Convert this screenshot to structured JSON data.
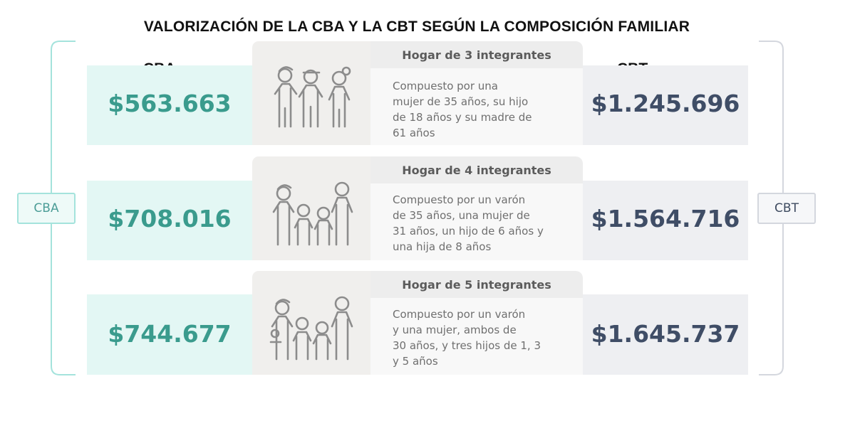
{
  "title": "VALORIZACIÓN DE LA CBA Y LA CBT SEGÚN LA COMPOSICIÓN FAMILIAR",
  "col_cba": "CBA",
  "col_cbt": "CBT",
  "side_cba": "CBA",
  "side_cbt": "CBT",
  "colors": {
    "cba_band": "#e3f7f4",
    "cba_text": "#3a9b8d",
    "cbt_band": "#eeeff2",
    "cbt_text": "#3f4d66",
    "icon": "#8c8c8c"
  },
  "rows": [
    {
      "cba": "$563.663",
      "header": "Hogar de 3 integrantes",
      "lines": [
        "Compuesto por una",
        "mujer de 35 años, su hijo",
        "de 18 años y su madre de",
        "61 años"
      ],
      "cbt": "$1.245.696",
      "icon": "family-3-icon"
    },
    {
      "cba": "$708.016",
      "header": "Hogar de 4 integrantes",
      "lines": [
        "Compuesto por un varón",
        "de 35 años, una mujer de",
        "31 años, un hijo de 6 años y",
        "una hija de 8 años"
      ],
      "cbt": "$1.564.716",
      "icon": "family-4-icon"
    },
    {
      "cba": "$744.677",
      "header": "Hogar de 5 integrantes",
      "lines": [
        "Compuesto por un varón",
        "y una mujer, ambos de",
        "30 años, y tres hijos de 1, 3",
        "y 5 años"
      ],
      "cbt": "$1.645.737",
      "icon": "family-5-icon"
    }
  ]
}
